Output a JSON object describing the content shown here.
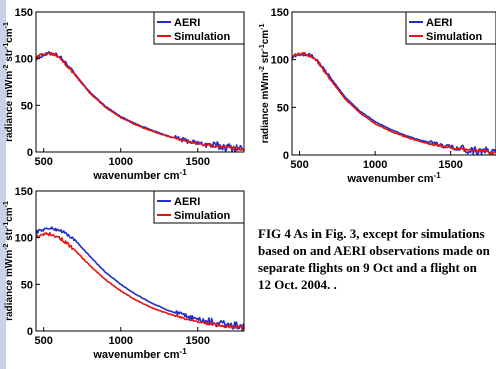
{
  "caption": "FIG 4 As in Fig. 3, except for simulations based on and AERI observations made on separate flights on 9 Oct and a flight on 12 Oct. 2004. .",
  "colors": {
    "aeri": "#1f2fc8",
    "simulation": "#e31414",
    "axis": "#000000"
  },
  "chart_data": [
    {
      "type": "line",
      "xlabel": "wavenumber cm",
      "xlabel_sup": "-1",
      "ylabel": "radiance mWm-2 str-1cm-1",
      "xlim": [
        450,
        1800
      ],
      "ylim": [
        0,
        150
      ],
      "xticks": [
        500,
        1000,
        1500
      ],
      "yticks": [
        0,
        50,
        100,
        150
      ],
      "legend": "top-right",
      "series": [
        {
          "name": "AERI",
          "color": "#1f2fc8",
          "x": [
            450,
            500,
            540,
            580,
            620,
            700,
            800,
            900,
            1000,
            1100,
            1200,
            1300,
            1400,
            1500,
            1600,
            1700,
            1800
          ],
          "y": [
            100,
            104,
            106,
            105,
            100,
            84,
            64,
            49,
            38,
            30,
            23.5,
            17.5,
            13,
            9.5,
            7,
            5,
            3.5
          ]
        },
        {
          "name": "Simulation",
          "color": "#e31414",
          "x": [
            450,
            500,
            540,
            580,
            620,
            700,
            800,
            900,
            1000,
            1100,
            1200,
            1300,
            1400,
            1500,
            1600,
            1700,
            1800
          ],
          "y": [
            101,
            105,
            106,
            104.5,
            99,
            83,
            63,
            48,
            37,
            29,
            22.5,
            17,
            12.5,
            9,
            6.5,
            4.5,
            3
          ]
        }
      ]
    },
    {
      "type": "line",
      "xlabel": "wavenumber cm",
      "xlabel_sup": "-1",
      "ylabel": "radiance mWm-2 str-1cm-1",
      "xlim": [
        450,
        1800
      ],
      "ylim": [
        0,
        150
      ],
      "xticks": [
        500,
        1000,
        1500
      ],
      "yticks": [
        0,
        50,
        100,
        150
      ],
      "legend": "top-right",
      "series": [
        {
          "name": "AERI",
          "color": "#1f2fc8",
          "x": [
            450,
            500,
            540,
            580,
            620,
            700,
            800,
            900,
            1000,
            1100,
            1200,
            1300,
            1400,
            1500,
            1600,
            1700,
            1800
          ],
          "y": [
            103,
            106,
            106,
            104,
            99,
            82,
            61,
            46,
            35,
            27,
            20.5,
            15.5,
            11.5,
            8.5,
            6,
            4.5,
            3
          ]
        },
        {
          "name": "Simulation",
          "color": "#e31414",
          "x": [
            450,
            500,
            540,
            580,
            620,
            700,
            800,
            900,
            1000,
            1100,
            1200,
            1300,
            1400,
            1500,
            1600,
            1700,
            1800
          ],
          "y": [
            104,
            107,
            106,
            103.5,
            98,
            80,
            59,
            44,
            33,
            25,
            19,
            14,
            10.5,
            7.5,
            5.5,
            4,
            2.5
          ]
        }
      ]
    },
    {
      "type": "line",
      "xlabel": "wavenumber cm",
      "xlabel_sup": "-1",
      "ylabel": "radiance mWm-2 str-1cm-1",
      "xlim": [
        450,
        1800
      ],
      "ylim": [
        0,
        150
      ],
      "xticks": [
        500,
        1000,
        1500
      ],
      "yticks": [
        0,
        50,
        100,
        150
      ],
      "legend": "top-right",
      "series": [
        {
          "name": "AERI",
          "color": "#1f2fc8",
          "x": [
            450,
            500,
            540,
            580,
            620,
            700,
            800,
            900,
            1000,
            1100,
            1200,
            1300,
            1400,
            1500,
            1600,
            1700,
            1800
          ],
          "y": [
            106,
            109,
            110,
            109,
            107,
            98,
            80,
            63,
            50,
            39,
            30,
            22.5,
            17,
            12.5,
            9,
            6.5,
            4.5
          ]
        },
        {
          "name": "Simulation",
          "color": "#e31414",
          "x": [
            450,
            500,
            540,
            580,
            620,
            700,
            800,
            900,
            1000,
            1100,
            1200,
            1300,
            1400,
            1500,
            1600,
            1700,
            1800
          ],
          "y": [
            101,
            104,
            104,
            102,
            98,
            87,
            70,
            55,
            43,
            33,
            25,
            19,
            14,
            10,
            7,
            5,
            3.5
          ]
        }
      ]
    }
  ]
}
